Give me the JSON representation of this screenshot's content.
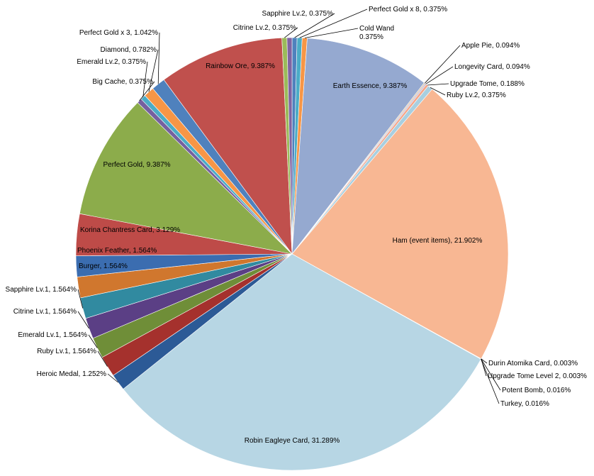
{
  "chart_data": {
    "type": "pie",
    "title": "",
    "start_angle_deg": -90,
    "direction": "clockwise",
    "slices": [
      {
        "name": "Sapphire Lv.2",
        "value": 0.375,
        "label": "Sapphire Lv.2, 0.375%",
        "color": "#4f81bd"
      },
      {
        "name": "Perfect Gold x 8",
        "value": 0.375,
        "label": "Perfect Gold x 8, 0.375%",
        "color": "#4bacc6"
      },
      {
        "name": "Cold Wand",
        "value": 0.375,
        "label": "Cold Wand\n0.375%",
        "color": "#f79646"
      },
      {
        "name": "Earth Essence",
        "value": 9.387,
        "label": "Earth Essence, 9.387%",
        "color": "#95a9d0"
      },
      {
        "name": "Apple Pie",
        "value": 0.094,
        "label": "Apple Pie, 0.094%",
        "color": "#d6c0a4"
      },
      {
        "name": "Longevity Card",
        "value": 0.094,
        "label": "Longevity Card, 0.094%",
        "color": "#b9b0d0"
      },
      {
        "name": "Upgrade Tome",
        "value": 0.188,
        "label": "Upgrade Tome, 0.188%",
        "color": "#f4a68a"
      },
      {
        "name": "Ruby Lv.2",
        "value": 0.375,
        "label": "Ruby Lv.2, 0.375%",
        "color": "#a8cfe0"
      },
      {
        "name": "Ham (event items)",
        "value": 21.902,
        "label": "Ham (event items), 21.902%",
        "color": "#f8b793"
      },
      {
        "name": "Durin Atomika Card",
        "value": 0.003,
        "label": "Durin Atomika Card, 0.003%",
        "color": "#8eb4e3"
      },
      {
        "name": "Upgrade Tome Level 2",
        "value": 0.003,
        "label": "Upgrade Tome Level 2, 0.003%",
        "color": "#c3d69b"
      },
      {
        "name": "Potent Bomb",
        "value": 0.016,
        "label": "Potent Bomb, 0.016%",
        "color": "#b3a2c7"
      },
      {
        "name": "Turkey",
        "value": 0.016,
        "label": "Turkey, 0.016%",
        "color": "#fac090"
      },
      {
        "name": "Robin Eagleye Card",
        "value": 31.289,
        "label": "Robin Eagleye Card, 31.289%",
        "color": "#b7d6e4"
      },
      {
        "name": "Heroic Medal",
        "value": 1.252,
        "label": "Heroic Medal, 1.252%",
        "color": "#2c5a96"
      },
      {
        "name": "Ruby Lv.1",
        "value": 1.564,
        "label": "Ruby Lv.1, 1.564%",
        "color": "#a5312d"
      },
      {
        "name": "Emerald Lv.1",
        "value": 1.564,
        "label": "Emerald Lv.1, 1.564%",
        "color": "#6f8e38"
      },
      {
        "name": "Citrine Lv.1",
        "value": 1.564,
        "label": "Citrine Lv.1, 1.564%",
        "color": "#5b3f85"
      },
      {
        "name": "Sapphire Lv.1",
        "value": 1.564,
        "label": "Sapphire Lv.1, 1.564%",
        "color": "#318aa0"
      },
      {
        "name": "Burger",
        "value": 1.564,
        "label": "Burger, 1.564%",
        "color": "#d0772e"
      },
      {
        "name": "Phoenix Feather",
        "value": 1.564,
        "label": "Phoenix Feather,  1.564%",
        "color": "#3b6db0"
      },
      {
        "name": "Korina Chantress Card",
        "value": 3.129,
        "label": "Korina Chantress Card, 3.129%",
        "color": "#be4b48"
      },
      {
        "name": "Perfect Gold",
        "value": 9.387,
        "label": "Perfect Gold, 9.387%",
        "color": "#8cac4b"
      },
      {
        "name": "Big Cache",
        "value": 0.375,
        "label": "Big Cache, 0.375%",
        "color": "#7560a0"
      },
      {
        "name": "Emerald Lv.2",
        "value": 0.375,
        "label": "Emerald Lv.2, 0.375%",
        "color": "#4bacc6"
      },
      {
        "name": "Diamond",
        "value": 0.782,
        "label": "Diamond, 0.782%",
        "color": "#f79646"
      },
      {
        "name": "Perfect Gold x 3",
        "value": 1.042,
        "label": "Perfect Gold x 3, 1.042%",
        "color": "#4f81bd"
      },
      {
        "name": "Rainbow Ore",
        "value": 9.387,
        "label": "Rainbow Ore, 9.387%",
        "color": "#c0504d"
      },
      {
        "name": "Citrine Lv.2",
        "value": 0.375,
        "label": "Citrine Lv.2, 0.375%",
        "color": "#9bbb59"
      },
      {
        "name": "Sapphire Lv.2 (b)",
        "value": 0.375,
        "label": "",
        "color": "#8064a2"
      }
    ]
  }
}
